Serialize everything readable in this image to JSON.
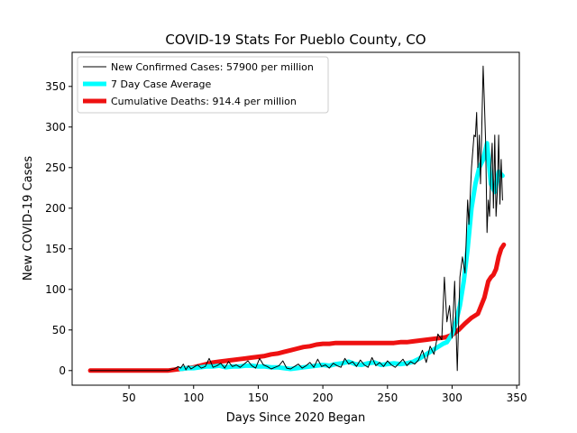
{
  "chart_data": {
    "type": "line",
    "title": "COVID-19 Stats For Pueblo County, CO",
    "xlabel": "Days Since 2020 Began",
    "ylabel": "New COVID-19 Cases",
    "xlim": [
      6,
      352
    ],
    "ylim": [
      -18,
      392
    ],
    "xticks": [
      50,
      100,
      150,
      200,
      250,
      300,
      350
    ],
    "yticks": [
      0,
      50,
      100,
      150,
      200,
      250,
      300,
      350
    ],
    "grid": false,
    "legend_position": "top-left",
    "series": [
      {
        "name": "New Confirmed Cases: 57900 per million",
        "color": "#000000",
        "style": "thin",
        "x": [
          20,
          30,
          40,
          50,
          60,
          70,
          80,
          85,
          88,
          90,
          92,
          94,
          96,
          98,
          100,
          103,
          106,
          109,
          112,
          115,
          118,
          121,
          124,
          127,
          130,
          133,
          136,
          139,
          142,
          145,
          148,
          151,
          154,
          157,
          160,
          163,
          166,
          169,
          172,
          175,
          178,
          181,
          184,
          187,
          190,
          193,
          196,
          199,
          202,
          205,
          208,
          211,
          214,
          217,
          220,
          223,
          226,
          229,
          232,
          235,
          238,
          241,
          244,
          247,
          250,
          253,
          256,
          259,
          262,
          265,
          268,
          271,
          274,
          277,
          280,
          283,
          286,
          289,
          292,
          294,
          296,
          298,
          300,
          302,
          304,
          306,
          308,
          310,
          312,
          313,
          315,
          317,
          318,
          319,
          320,
          321,
          322,
          323,
          324,
          325,
          326,
          327,
          328,
          329,
          330,
          331,
          332,
          333,
          334,
          335,
          336,
          337,
          338,
          339
        ],
        "y": [
          0,
          0,
          0,
          0,
          0,
          0,
          0,
          2,
          5,
          3,
          8,
          1,
          6,
          2,
          4,
          7,
          3,
          5,
          15,
          4,
          6,
          9,
          3,
          11,
          5,
          7,
          4,
          8,
          12,
          6,
          3,
          15,
          7,
          5,
          2,
          4,
          6,
          12,
          3,
          2,
          5,
          8,
          3,
          6,
          10,
          4,
          14,
          5,
          7,
          3,
          9,
          6,
          4,
          15,
          8,
          11,
          5,
          13,
          7,
          4,
          16,
          6,
          10,
          5,
          12,
          7,
          4,
          9,
          14,
          6,
          11,
          8,
          13,
          25,
          10,
          30,
          20,
          45,
          38,
          115,
          60,
          80,
          40,
          110,
          0,
          115,
          140,
          120,
          210,
          180,
          250,
          290,
          288,
          318,
          250,
          290,
          230,
          300,
          375,
          330,
          280,
          170,
          210,
          190,
          250,
          280,
          200,
          290,
          190,
          220,
          290,
          205,
          260,
          210
        ]
      },
      {
        "name": "7 Day Case Average",
        "color": "#00ffff",
        "style": "thick",
        "x": [
          90,
          95,
          100,
          105,
          110,
          115,
          120,
          125,
          130,
          135,
          140,
          145,
          150,
          155,
          160,
          165,
          170,
          175,
          180,
          185,
          190,
          195,
          200,
          205,
          210,
          215,
          220,
          225,
          230,
          235,
          240,
          245,
          250,
          255,
          260,
          265,
          270,
          275,
          280,
          285,
          290,
          293,
          296,
          300,
          303,
          306,
          309,
          312,
          315,
          318,
          321,
          324,
          327,
          330,
          333,
          336,
          339
        ],
        "y": [
          2,
          3,
          3,
          4,
          5,
          5,
          6,
          4,
          5,
          5,
          6,
          6,
          5,
          5,
          4,
          4,
          3,
          2,
          3,
          4,
          5,
          6,
          7,
          6,
          8,
          9,
          11,
          8,
          7,
          9,
          10,
          7,
          8,
          9,
          8,
          9,
          11,
          15,
          20,
          25,
          30,
          33,
          35,
          45,
          60,
          80,
          110,
          150,
          200,
          230,
          250,
          260,
          280,
          230,
          220,
          245,
          240
        ]
      },
      {
        "name": "Cumulative Deaths: 914.4 per million",
        "color": "#ee1111",
        "style": "thick",
        "x": [
          20,
          40,
          60,
          80,
          85,
          90,
          95,
          100,
          105,
          110,
          115,
          120,
          125,
          130,
          135,
          140,
          145,
          150,
          155,
          160,
          165,
          170,
          175,
          180,
          185,
          190,
          195,
          200,
          205,
          210,
          215,
          220,
          225,
          230,
          235,
          240,
          245,
          250,
          255,
          260,
          265,
          270,
          275,
          280,
          285,
          290,
          295,
          300,
          305,
          310,
          315,
          320,
          325,
          328,
          330,
          332,
          334,
          336,
          338,
          340
        ],
        "y": [
          0,
          0,
          0,
          0,
          1,
          2,
          3,
          4,
          6,
          8,
          10,
          11,
          12,
          13,
          14,
          15,
          16,
          17,
          18,
          20,
          21,
          23,
          25,
          27,
          29,
          30,
          32,
          33,
          33,
          34,
          34,
          34,
          34,
          34,
          34,
          34,
          34,
          34,
          34,
          35,
          35,
          36,
          37,
          38,
          39,
          40,
          41,
          44,
          50,
          58,
          65,
          70,
          90,
          110,
          115,
          118,
          125,
          140,
          150,
          155
        ]
      }
    ]
  }
}
